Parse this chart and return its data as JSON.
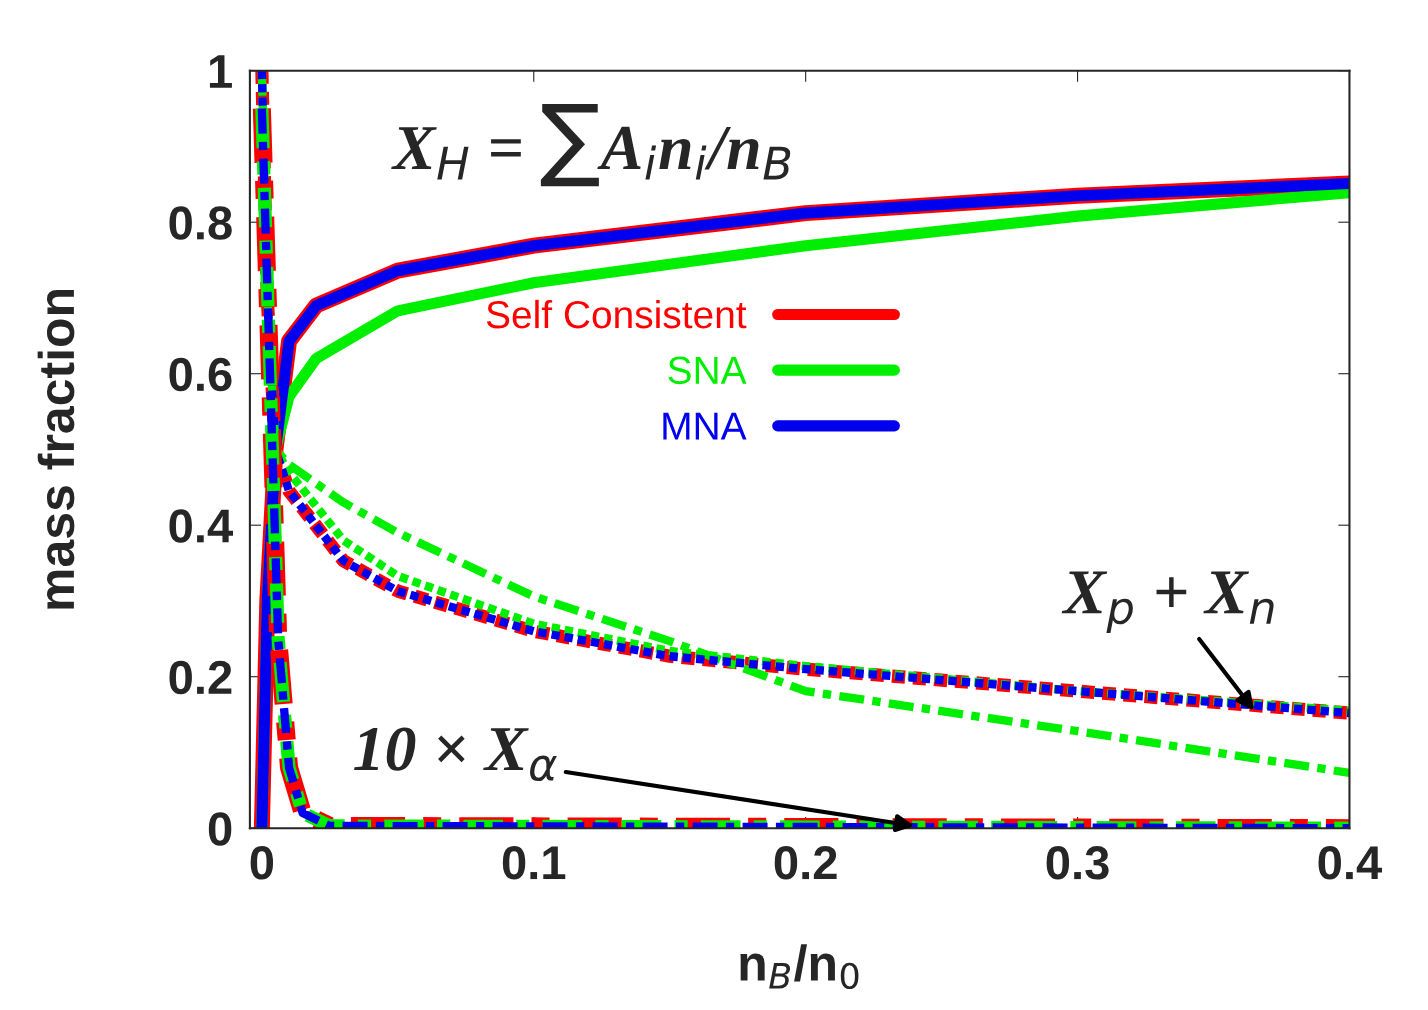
{
  "chart_data": {
    "type": "line",
    "xlabel": "n$_{B}$/n$_{0}$",
    "ylabel": "mass fraction",
    "xlim": [
      -0.0044,
      0.4
    ],
    "ylim": [
      0,
      1
    ],
    "xticks": [
      0,
      0.1,
      0.2,
      0.3,
      0.4
    ],
    "yticks": [
      0,
      0.2,
      0.4,
      0.6,
      0.8,
      1
    ],
    "grid": false,
    "legend": "center",
    "marker": "none",
    "series": [
      {
        "name": "Self Consistent",
        "color": "#ff0000",
        "line_style": "solid",
        "x": [
          0,
          0.002,
          0.005,
          0.01,
          0.02,
          0.05,
          0.1,
          0.2,
          0.3,
          0.4
        ],
        "values": [
          0,
          0.3,
          0.5,
          0.643,
          0.69,
          0.736,
          0.769,
          0.812,
          0.835,
          0.851
        ]
      },
      {
        "name": "SNA",
        "color": "#00ee00",
        "line_style": "solid",
        "x": [
          0,
          0.002,
          0.005,
          0.01,
          0.02,
          0.05,
          0.1,
          0.2,
          0.3,
          0.4
        ],
        "values": [
          0,
          0.3,
          0.5,
          0.57,
          0.62,
          0.683,
          0.72,
          0.769,
          0.808,
          0.839
        ]
      },
      {
        "name": "MNA",
        "color": "#0000ee",
        "line_style": "solid",
        "x": [
          0,
          0.002,
          0.005,
          0.01,
          0.02,
          0.05,
          0.1,
          0.2,
          0.3,
          0.4
        ],
        "values": [
          0,
          0.3,
          0.5,
          0.643,
          0.69,
          0.736,
          0.769,
          0.812,
          0.835,
          0.851
        ]
      },
      {
        "color": "#ff0000",
        "line_style": "dotted",
        "x": [
          0,
          0.002,
          0.005,
          0.01,
          0.03,
          0.05,
          0.1,
          0.15,
          0.2,
          0.3,
          0.4
        ],
        "values": [
          1,
          0.7,
          0.5,
          0.445,
          0.353,
          0.313,
          0.26,
          0.227,
          0.21,
          0.181,
          0.152
        ]
      },
      {
        "color": "#00ee00",
        "line_style": "dotted",
        "x": [
          0,
          0.002,
          0.005,
          0.01,
          0.03,
          0.05,
          0.1,
          0.15,
          0.2,
          0.3,
          0.4
        ],
        "values": [
          1,
          0.7,
          0.5,
          0.47,
          0.38,
          0.333,
          0.27,
          0.234,
          0.214,
          0.181,
          0.155
        ]
      },
      {
        "color": "#00ee00",
        "line_style": "dashed",
        "x": [
          0,
          0.002,
          0.005,
          0.01,
          0.03,
          0.05,
          0.1,
          0.15,
          0.2,
          0.3,
          0.4
        ],
        "values": [
          1,
          0.7,
          0.5,
          0.48,
          0.43,
          0.39,
          0.306,
          0.247,
          0.181,
          0.128,
          0.073
        ]
      },
      {
        "color": "#0000ee",
        "line_style": "dotted",
        "x": [
          0,
          0.002,
          0.005,
          0.01,
          0.03,
          0.05,
          0.1,
          0.15,
          0.2,
          0.3,
          0.4
        ],
        "values": [
          1,
          0.7,
          0.5,
          0.445,
          0.353,
          0.313,
          0.26,
          0.227,
          0.21,
          0.181,
          0.152
        ]
      },
      {
        "color": "#ff0000",
        "line_style": "dashed",
        "x": [
          0,
          0.003,
          0.006,
          0.01,
          0.015,
          0.025,
          0.4
        ],
        "values": [
          0.95,
          0.6,
          0.25,
          0.08,
          0.02,
          0.003,
          0
        ]
      },
      {
        "color": "#00ee00",
        "line_style": "dashed",
        "x": [
          0,
          0.003,
          0.006,
          0.01,
          0.015,
          0.025,
          0.4
        ],
        "values": [
          0.95,
          0.6,
          0.25,
          0.08,
          0.02,
          0.003,
          0
        ]
      },
      {
        "color": "#0000ee",
        "line_style": "dashed",
        "x": [
          0,
          0.003,
          0.006,
          0.01,
          0.015,
          0.025,
          0.4
        ],
        "values": [
          0.95,
          0.6,
          0.25,
          0.08,
          0.02,
          0.003,
          0
        ]
      }
    ],
    "annotations": [
      "X$_{H}$ = ∑A$_{i}$n$_{i}$/n$_{B}$",
      {
        "text": "X$_{p}$ + X$_{n}$",
        "x": 0.365,
        "y": 0.155
      },
      {
        "text": "10 × X$_{α}$",
        "x": 0.24,
        "y": 0.003
      }
    ]
  }
}
